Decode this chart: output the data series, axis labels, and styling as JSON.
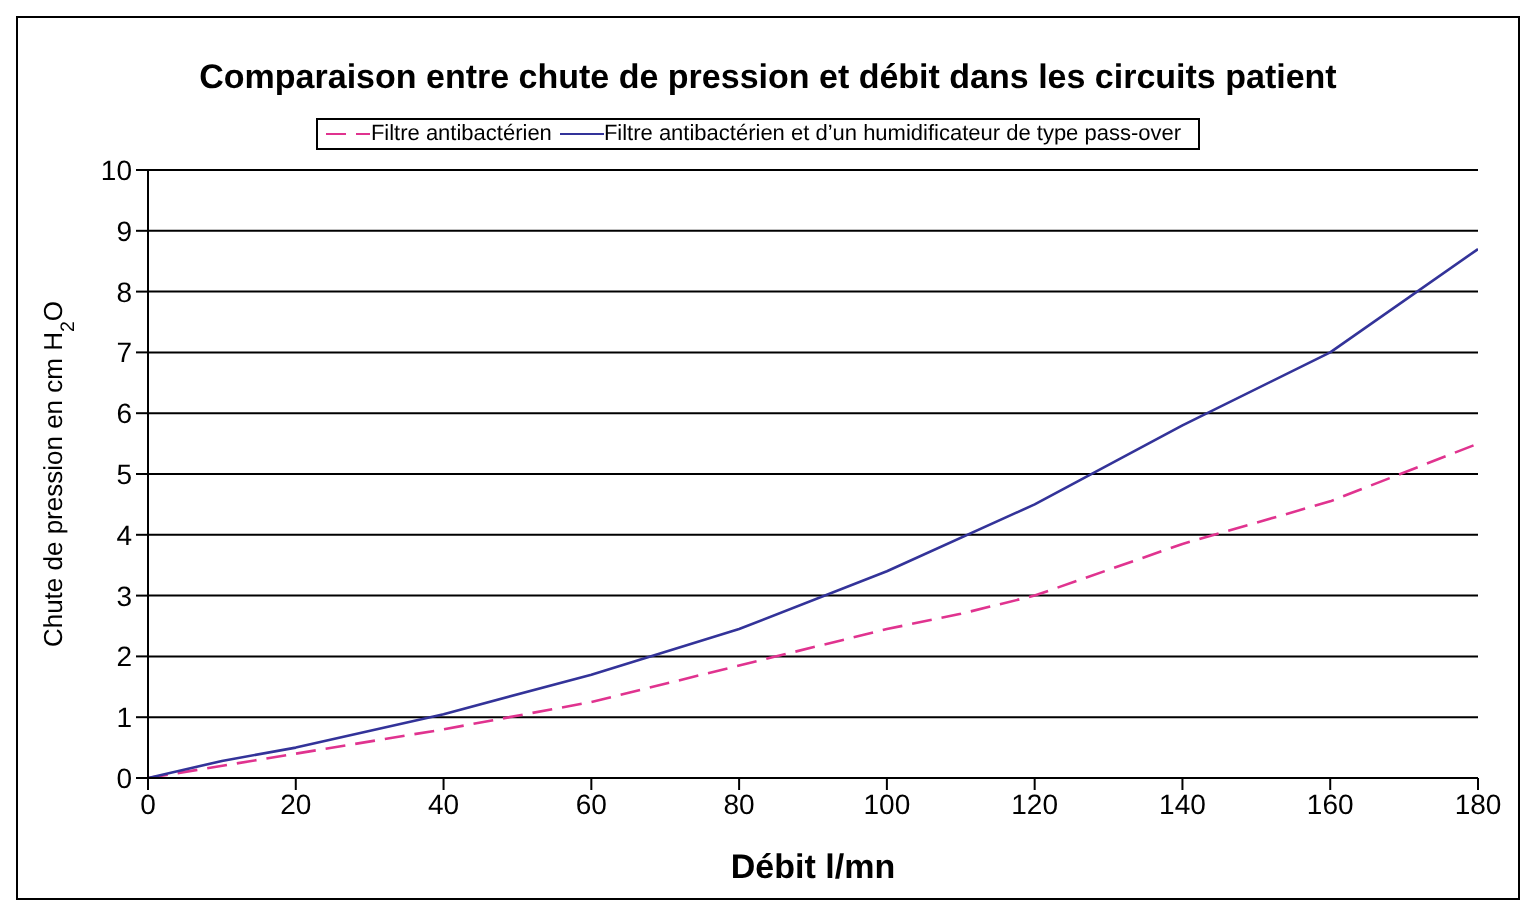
{
  "chart_data": {
    "type": "line",
    "title": "Comparaison entre chute de pression et débit dans les circuits patient",
    "xlabel": "Débit l/mn",
    "ylabel": "Chute de pression en cm H$_{2}$O",
    "series": [
      {
        "name": "Filtre antibactérien",
        "color": "#e0338f",
        "line_style": "dashed",
        "x": [
          0,
          20,
          40,
          60,
          80,
          100,
          110,
          120,
          140,
          160,
          180
        ],
        "values": [
          0,
          0.4,
          0.8,
          1.25,
          1.85,
          2.45,
          2.7,
          3.0,
          3.85,
          4.55,
          5.5
        ]
      },
      {
        "name": "Filtre antibactérien et d’un humidificateur de type pass-over",
        "color": "#333399",
        "line_style": "solid",
        "x": [
          0,
          10,
          20,
          40,
          60,
          80,
          100,
          120,
          140,
          160,
          180
        ],
        "values": [
          0,
          0.28,
          0.5,
          1.05,
          1.7,
          2.45,
          3.4,
          4.5,
          5.8,
          7.0,
          8.7
        ]
      }
    ],
    "xlim": [
      0,
      180
    ],
    "xticks": [
      0,
      20,
      40,
      60,
      80,
      100,
      120,
      140,
      160,
      180
    ],
    "ylim": [
      0,
      10
    ],
    "yticks": [
      0,
      1,
      2,
      3,
      4,
      5,
      6,
      7,
      8,
      9,
      10
    ],
    "grid": "y",
    "legend": "top",
    "marker": "none"
  }
}
